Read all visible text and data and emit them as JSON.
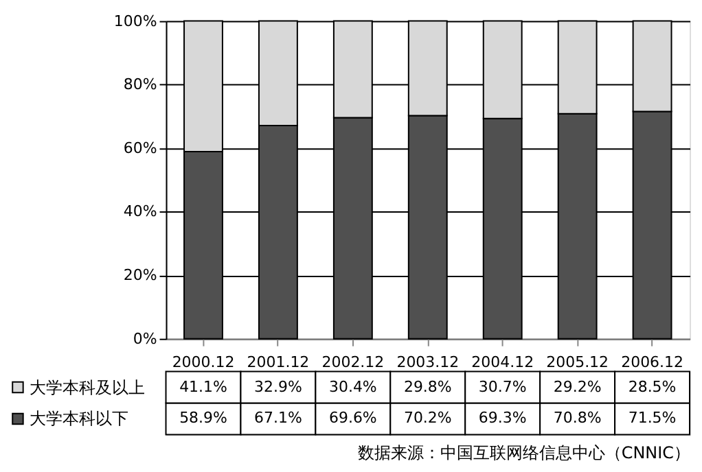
{
  "chart_data": {
    "type": "bar",
    "stacked": true,
    "categories": [
      "2000.12",
      "2001.12",
      "2002.12",
      "2003.12",
      "2004.12",
      "2005.12",
      "2006.12"
    ],
    "series": [
      {
        "name": "大学本科以下",
        "color": "#505050",
        "values": [
          58.9,
          67.1,
          69.6,
          70.2,
          69.3,
          70.8,
          71.5
        ],
        "value_labels": [
          "58.9%",
          "67.1%",
          "69.6%",
          "70.2%",
          "69.3%",
          "70.8%",
          "71.5%"
        ]
      },
      {
        "name": "大学本科及以上",
        "color": "#d8d8d8",
        "values": [
          41.1,
          32.9,
          30.4,
          29.8,
          30.7,
          29.2,
          28.5
        ],
        "value_labels": [
          "41.1%",
          "32.9%",
          "30.4%",
          "29.8%",
          "30.7%",
          "29.2%",
          "28.5%"
        ]
      }
    ],
    "ylim": [
      0,
      100
    ],
    "yticks": [
      {
        "value": 0,
        "label": "0%"
      },
      {
        "value": 20,
        "label": "20%"
      },
      {
        "value": 40,
        "label": "40%"
      },
      {
        "value": 60,
        "label": "60%"
      },
      {
        "value": 80,
        "label": "80%"
      },
      {
        "value": 100,
        "label": "100%"
      }
    ],
    "grid": "y",
    "legend": "bottom left",
    "annotations": [
      "数据来源：中国互联网络信息中心（CNNIC）"
    ]
  }
}
